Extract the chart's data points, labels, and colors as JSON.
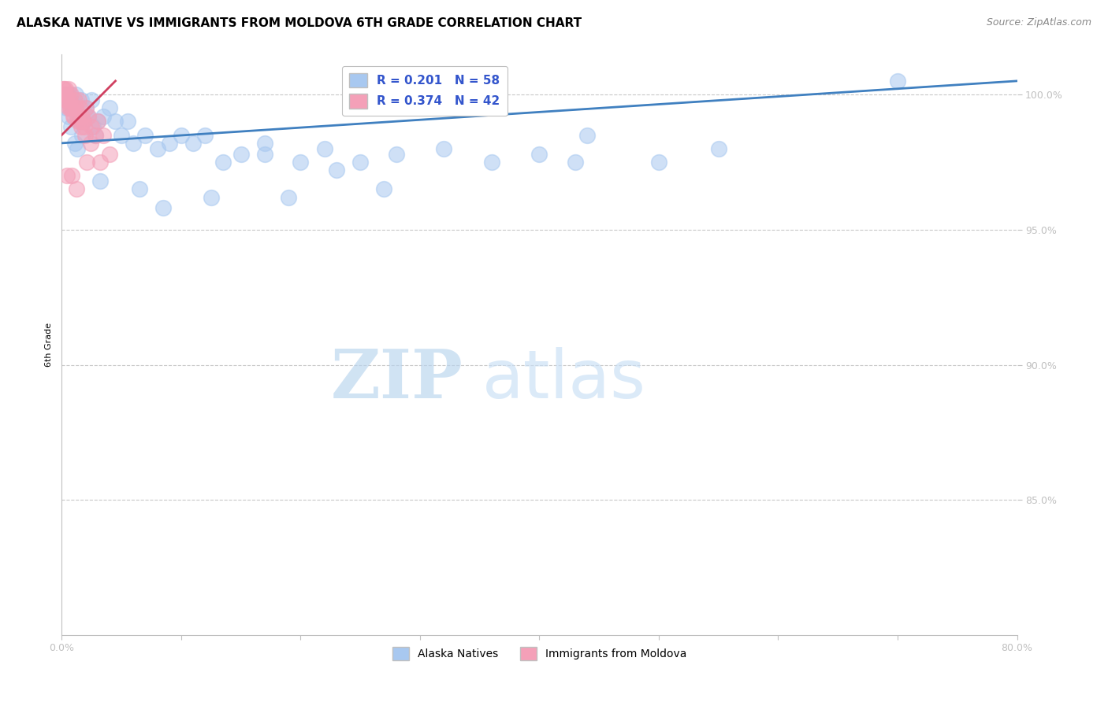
{
  "title": "ALASKA NATIVE VS IMMIGRANTS FROM MOLDOVA 6TH GRADE CORRELATION CHART",
  "source": "Source: ZipAtlas.com",
  "ylabel": "6th Grade",
  "y_ticks": [
    85.0,
    90.0,
    95.0,
    100.0
  ],
  "x_range": [
    0.0,
    80.0
  ],
  "y_range": [
    80.0,
    101.5
  ],
  "legend_blue_r": "R = 0.201",
  "legend_blue_n": "N = 58",
  "legend_pink_r": "R = 0.374",
  "legend_pink_n": "N = 42",
  "blue_scatter_x": [
    0.3,
    0.5,
    0.7,
    0.9,
    1.0,
    1.2,
    1.4,
    1.6,
    1.8,
    2.0,
    2.2,
    2.5,
    2.8,
    3.0,
    3.5,
    4.0,
    4.5,
    5.0,
    5.5,
    6.0,
    7.0,
    8.0,
    9.0,
    10.0,
    11.0,
    12.0,
    13.5,
    15.0,
    17.0,
    20.0,
    22.0,
    25.0,
    28.0,
    32.0,
    36.0,
    40.0,
    44.0,
    50.0,
    55.0,
    70.0,
    0.4,
    0.6,
    0.8,
    1.1,
    1.3,
    1.5,
    1.7,
    2.1,
    2.6,
    3.2,
    6.5,
    8.5,
    12.5,
    17.0,
    19.0,
    23.0,
    27.0,
    43.0
  ],
  "blue_scatter_y": [
    99.8,
    100.0,
    100.0,
    99.5,
    99.8,
    100.0,
    99.2,
    99.8,
    99.0,
    99.5,
    99.2,
    99.8,
    98.5,
    99.0,
    99.2,
    99.5,
    99.0,
    98.5,
    99.0,
    98.2,
    98.5,
    98.0,
    98.2,
    98.5,
    98.2,
    98.5,
    97.5,
    97.8,
    98.2,
    97.5,
    98.0,
    97.5,
    97.8,
    98.0,
    97.5,
    97.8,
    98.5,
    97.5,
    98.0,
    100.5,
    99.5,
    99.2,
    98.8,
    98.2,
    98.0,
    99.0,
    98.5,
    99.2,
    98.8,
    96.8,
    96.5,
    95.8,
    96.2,
    97.8,
    96.2,
    97.2,
    96.5,
    97.5
  ],
  "pink_scatter_x": [
    0.1,
    0.2,
    0.3,
    0.4,
    0.5,
    0.6,
    0.7,
    0.8,
    0.9,
    1.0,
    1.1,
    1.2,
    1.3,
    1.4,
    1.5,
    1.6,
    1.7,
    1.8,
    1.9,
    2.0,
    2.2,
    2.5,
    2.8,
    3.0,
    3.5,
    4.0,
    0.15,
    0.35,
    0.55,
    0.75,
    1.05,
    1.35,
    1.65,
    1.95,
    2.4,
    3.2,
    0.45,
    0.85,
    1.25,
    2.1,
    0.25,
    0.65
  ],
  "pink_scatter_y": [
    100.2,
    100.0,
    100.2,
    99.8,
    100.0,
    100.2,
    99.5,
    100.0,
    99.5,
    99.2,
    99.8,
    99.5,
    99.2,
    99.8,
    99.5,
    99.0,
    99.2,
    99.0,
    98.8,
    99.5,
    99.2,
    98.8,
    98.5,
    99.0,
    98.5,
    97.8,
    100.2,
    99.8,
    99.5,
    99.5,
    99.2,
    99.0,
    98.8,
    98.5,
    98.2,
    97.5,
    97.0,
    97.0,
    96.5,
    97.5,
    100.0,
    99.8
  ],
  "blue_line_x": [
    0.0,
    80.0
  ],
  "blue_line_y": [
    98.2,
    100.5
  ],
  "pink_line_x": [
    0.0,
    4.5
  ],
  "pink_line_y": [
    98.5,
    100.5
  ],
  "blue_color": "#A8C8F0",
  "pink_color": "#F4A0B8",
  "blue_line_color": "#4080C0",
  "pink_line_color": "#D04060",
  "watermark_zip": "ZIP",
  "watermark_atlas": "atlas",
  "title_fontsize": 11,
  "axis_label_fontsize": 8,
  "source_fontsize": 9,
  "tick_fontsize": 9,
  "legend_fontsize": 11
}
